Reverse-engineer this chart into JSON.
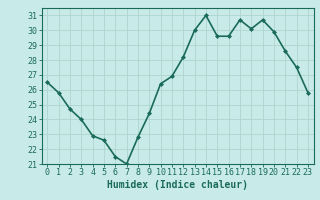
{
  "x": [
    0,
    1,
    2,
    3,
    4,
    5,
    6,
    7,
    8,
    9,
    10,
    11,
    12,
    13,
    14,
    15,
    16,
    17,
    18,
    19,
    20,
    21,
    22,
    23
  ],
  "y": [
    26.5,
    25.8,
    24.7,
    24.0,
    22.9,
    22.6,
    21.5,
    21.0,
    22.8,
    24.4,
    26.4,
    26.9,
    28.2,
    30.0,
    31.0,
    29.6,
    29.6,
    30.7,
    30.1,
    30.7,
    29.9,
    28.6,
    27.5,
    25.8
  ],
  "xlabel": "Humidex (Indice chaleur)",
  "ylim": [
    21,
    31.5
  ],
  "xlim": [
    -0.5,
    23.5
  ],
  "yticks": [
    21,
    22,
    23,
    24,
    25,
    26,
    27,
    28,
    29,
    30,
    31
  ],
  "xticks": [
    0,
    1,
    2,
    3,
    4,
    5,
    6,
    7,
    8,
    9,
    10,
    11,
    12,
    13,
    14,
    15,
    16,
    17,
    18,
    19,
    20,
    21,
    22,
    23
  ],
  "line_color": "#1a6b5a",
  "marker": "D",
  "marker_size": 2.0,
  "bg_color": "#c8eae8",
  "grid_color": "#b0d4d0",
  "axes_color": "#1a6b5a",
  "tick_label_color": "#1a6b5a",
  "xlabel_color": "#1a6b5a",
  "xlabel_fontsize": 7.0,
  "tick_fontsize": 6.0,
  "line_width": 1.2
}
